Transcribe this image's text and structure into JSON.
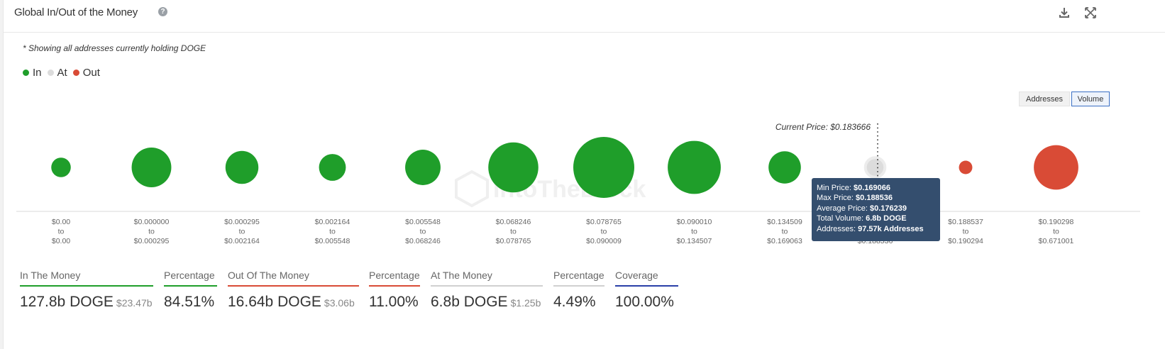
{
  "header": {
    "title": "Global In/Out of the Money",
    "help_symbol": "?"
  },
  "note": "* Showing all addresses currently holding DOGE",
  "legend": [
    {
      "label": "In",
      "color": "#1f9e2a"
    },
    {
      "label": "At",
      "color": "#dcdcdc"
    },
    {
      "label": "Out",
      "color": "#d94b36"
    }
  ],
  "toggles": {
    "addresses": "Addresses",
    "volume": "Volume",
    "active": "volume"
  },
  "watermark": "IntoTheBlock",
  "chart_data": {
    "type": "bubble",
    "current_price_label": "Current Price: $0.183666",
    "current_price": 0.183666,
    "range_word": "to",
    "colors": {
      "in": "#1f9e2a",
      "at": "#dcdcdc",
      "out": "#d94b36"
    },
    "points": [
      {
        "from": "$0.00",
        "to": "$0.00",
        "status": "in",
        "relative_volume": 0.32
      },
      {
        "from": "$0.000000",
        "to": "$0.000295",
        "status": "in",
        "relative_volume": 0.65
      },
      {
        "from": "$0.000295",
        "to": "$0.002164",
        "status": "in",
        "relative_volume": 0.54
      },
      {
        "from": "$0.002164",
        "to": "$0.005548",
        "status": "in",
        "relative_volume": 0.44
      },
      {
        "from": "$0.005548",
        "to": "$0.068246",
        "status": "in",
        "relative_volume": 0.58
      },
      {
        "from": "$0.068246",
        "to": "$0.078765",
        "status": "in",
        "relative_volume": 0.82
      },
      {
        "from": "$0.078765",
        "to": "$0.090009",
        "status": "in",
        "relative_volume": 1.0
      },
      {
        "from": "$0.090010",
        "to": "$0.134507",
        "status": "in",
        "relative_volume": 0.87
      },
      {
        "from": "$0.134509",
        "to": "$0.169063",
        "status": "in",
        "relative_volume": 0.53
      },
      {
        "from": "$0.169066",
        "to": "$0.188536",
        "status": "at",
        "relative_volume": 0.32
      },
      {
        "from": "$0.188537",
        "to": "$0.190294",
        "status": "out",
        "relative_volume": 0.22
      },
      {
        "from": "$0.190298",
        "to": "$0.671001",
        "status": "out",
        "relative_volume": 0.73
      }
    ]
  },
  "tooltip": {
    "min_label": "Min Price:",
    "min_value": "$0.169066",
    "max_label": "Max Price:",
    "max_value": "$0.188536",
    "avg_label": "Average Price:",
    "avg_value": "$0.176239",
    "vol_label": "Total Volume:",
    "vol_value": "6.8b DOGE",
    "addr_label": "Addresses:",
    "addr_value": "97.57k Addresses"
  },
  "stats": {
    "in": {
      "label": "In The Money",
      "value": "127.8b DOGE",
      "sub": "$23.47b",
      "color": "#1f9e2a"
    },
    "in_pct": {
      "label": "Percentage",
      "value": "84.51%",
      "color": "#1f9e2a"
    },
    "out": {
      "label": "Out Of The Money",
      "value": "16.64b DOGE",
      "sub": "$3.06b",
      "color": "#d94b36"
    },
    "out_pct": {
      "label": "Percentage",
      "value": "11.00%",
      "color": "#d94b36"
    },
    "at": {
      "label": "At The Money",
      "value": "6.8b DOGE",
      "sub": "$1.25b",
      "color": "#d0d0d0"
    },
    "at_pct": {
      "label": "Percentage",
      "value": "4.49%",
      "color": "#d0d0d0"
    },
    "coverage": {
      "label": "Coverage",
      "value": "100.00%",
      "color": "#2a3fa8"
    }
  }
}
